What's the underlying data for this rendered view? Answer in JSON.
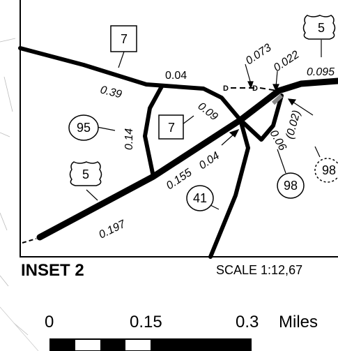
{
  "inset": {
    "title": "INSET 2",
    "scale": "SCALE 1:12,67"
  },
  "route_markers": {
    "state_7_top": "7",
    "state_7_mid": "7",
    "state_95": "95",
    "us_5_left": "5",
    "us_5_right": "5",
    "state_41": "41",
    "state_98": "98",
    "state_98_dashed": "98"
  },
  "mileage_labels": {
    "seg_039": "0.39",
    "seg_004_top": "0.04",
    "seg_009": "0.09",
    "seg_014": "0.14",
    "seg_0155": "0.155",
    "seg_004_mid": "0.04",
    "seg_0197": "0.197",
    "seg_0073": "0.073",
    "seg_0022": "0.022",
    "seg_0095": "0.095",
    "seg_006": "0.06",
    "seg_002": "(0.02)",
    "marker_d1": "D",
    "marker_d2": "D"
  },
  "scale_bar": {
    "label_0": "0",
    "label_015": "0.15",
    "label_03": "0.3",
    "unit": "Miles"
  }
}
